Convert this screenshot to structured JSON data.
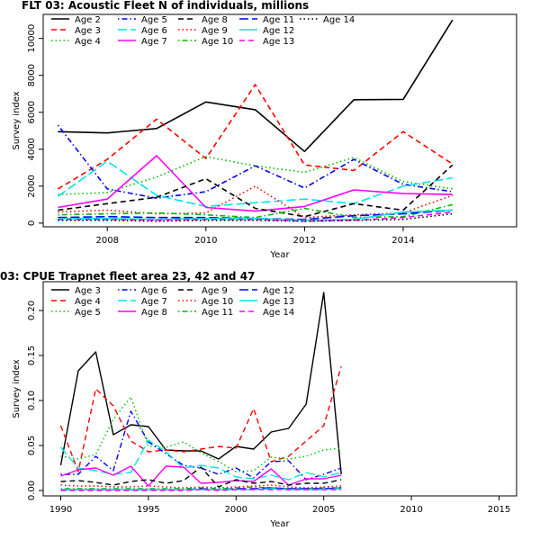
{
  "chart_data": [
    {
      "type": "line",
      "title": "FLT 03: Acoustic Fleet   N of individuals, millions",
      "xlabel": "Year",
      "ylabel": "Survey index",
      "xlim": [
        2006.7,
        2016.3
      ],
      "ylim": [
        -200,
        11300
      ],
      "xticks": [
        2008,
        2010,
        2012,
        2014
      ],
      "yticks": [
        0,
        2000,
        4000,
        6000,
        8000,
        10000
      ],
      "grid": false,
      "legend_position": "top",
      "x": [
        2007,
        2008,
        2009,
        2010,
        2011,
        2012,
        2013,
        2014,
        2015
      ],
      "series": [
        {
          "name": "Age 2",
          "color": "#000000",
          "dash": "solid",
          "values": [
            4950,
            4880,
            5120,
            6560,
            6140,
            3880,
            6680,
            6700,
            11000
          ]
        },
        {
          "name": "Age 3",
          "color": "#ff0000",
          "dash": "dashed",
          "values": [
            1850,
            3450,
            5630,
            3500,
            7500,
            3150,
            2850,
            4950,
            3200
          ]
        },
        {
          "name": "Age 4",
          "color": "#00bb00",
          "dash": "dotted",
          "values": [
            1550,
            1650,
            2500,
            3600,
            3100,
            2750,
            3550,
            2250,
            1850
          ]
        },
        {
          "name": "Age 5",
          "color": "#0000ff",
          "dash": "dotdash",
          "values": [
            5300,
            1850,
            1350,
            1700,
            3100,
            1900,
            3450,
            2100,
            1700
          ]
        },
        {
          "name": "Age 6",
          "color": "#00e5e5",
          "dash": "longdash",
          "values": [
            1450,
            3350,
            1500,
            900,
            1100,
            1300,
            1050,
            2000,
            2450
          ]
        },
        {
          "name": "Age 7",
          "color": "#ff00ff",
          "dash": "solid",
          "values": [
            850,
            1300,
            3650,
            850,
            650,
            900,
            1800,
            1600,
            1550
          ]
        },
        {
          "name": "Age 8",
          "color": "#000000",
          "dash": "dashed",
          "values": [
            700,
            1050,
            1400,
            2400,
            800,
            350,
            1050,
            700,
            3150
          ]
        },
        {
          "name": "Age 9",
          "color": "#ff0000",
          "dash": "dotted",
          "values": [
            600,
            700,
            500,
            550,
            2000,
            300,
            450,
            550,
            1500
          ]
        },
        {
          "name": "Age 10",
          "color": "#00bb00",
          "dash": "dotdash",
          "values": [
            450,
            500,
            550,
            450,
            300,
            800,
            300,
            350,
            1000
          ]
        },
        {
          "name": "Age 11",
          "color": "#0000ff",
          "dash": "longdash",
          "values": [
            300,
            350,
            300,
            300,
            250,
            200,
            400,
            500,
            700
          ]
        },
        {
          "name": "Age 12",
          "color": "#00e5e5",
          "dash": "solid",
          "values": [
            250,
            250,
            200,
            250,
            250,
            150,
            200,
            600,
            700
          ]
        },
        {
          "name": "Age 13",
          "color": "#ff00ff",
          "dash": "dashed",
          "values": [
            200,
            200,
            150,
            200,
            200,
            100,
            150,
            300,
            600
          ]
        },
        {
          "name": "Age 14",
          "color": "#000000",
          "dash": "dotted",
          "values": [
            150,
            150,
            100,
            150,
            150,
            100,
            150,
            200,
            500
          ]
        }
      ]
    },
    {
      "type": "line",
      "title": "03: CPUE Trapnet fleet area 23, 42 and 47",
      "xlabel": "Year",
      "ylabel": "Survey index",
      "xlim": [
        1989,
        2016
      ],
      "ylim": [
        -0.006,
        0.232
      ],
      "xticks": [
        1990,
        1995,
        2000,
        2005,
        2010,
        2015
      ],
      "yticks": [
        0.0,
        0.05,
        0.1,
        0.15,
        0.2
      ],
      "ytick_labels": [
        "0.00",
        "0.05",
        "0.10",
        "0.15",
        "0.20"
      ],
      "grid": false,
      "legend_position": "top",
      "x": [
        1990,
        1991,
        1992,
        1993,
        1994,
        1995,
        1996,
        1997,
        1998,
        1999,
        2000,
        2001,
        2002,
        2003,
        2004,
        2005,
        2006
      ],
      "series": [
        {
          "name": "Age 3",
          "color": "#000000",
          "dash": "solid",
          "values": [
            0.028,
            0.133,
            0.154,
            0.062,
            0.073,
            0.071,
            0.045,
            0.044,
            0.044,
            0.035,
            0.049,
            0.046,
            0.065,
            0.069,
            0.096,
            0.22,
            0.018
          ]
        },
        {
          "name": "Age 4",
          "color": "#ff0000",
          "dash": "dashed",
          "values": [
            0.072,
            0.021,
            0.113,
            0.094,
            0.055,
            0.043,
            0.045,
            0.043,
            0.046,
            0.049,
            0.047,
            0.091,
            0.032,
            0.038,
            0.055,
            0.072,
            0.138
          ]
        },
        {
          "name": "Age 5",
          "color": "#00bb00",
          "dash": "dotted",
          "values": [
            0.038,
            0.035,
            0.04,
            0.079,
            0.104,
            0.049,
            0.048,
            0.054,
            0.042,
            0.032,
            0.021,
            0.022,
            0.037,
            0.035,
            0.038,
            0.045,
            0.047
          ]
        },
        {
          "name": "Age 6",
          "color": "#0000ff",
          "dash": "dotdash",
          "values": [
            0.018,
            0.018,
            0.038,
            0.022,
            0.088,
            0.054,
            0.041,
            0.028,
            0.025,
            0.018,
            0.025,
            0.014,
            0.032,
            0.033,
            0.012,
            0.018,
            0.025
          ]
        },
        {
          "name": "Age 7",
          "color": "#00e5e5",
          "dash": "longdash",
          "values": [
            0.048,
            0.025,
            0.022,
            0.018,
            0.02,
            0.056,
            0.043,
            0.025,
            0.028,
            0.025,
            0.015,
            0.013,
            0.017,
            0.012,
            0.02,
            0.015,
            0.02
          ]
        },
        {
          "name": "Age 8",
          "color": "#ff00ff",
          "dash": "solid",
          "values": [
            0.016,
            0.023,
            0.025,
            0.017,
            0.027,
            0.005,
            0.027,
            0.026,
            0.008,
            0.009,
            0.011,
            0.01,
            0.024,
            0.006,
            0.013,
            0.013,
            0.017
          ]
        },
        {
          "name": "Age 9",
          "color": "#000000",
          "dash": "dashed",
          "values": [
            0.01,
            0.011,
            0.009,
            0.006,
            0.01,
            0.012,
            0.008,
            0.011,
            0.026,
            0.004,
            0.012,
            0.008,
            0.01,
            0.006,
            0.008,
            0.008,
            0.012
          ]
        },
        {
          "name": "Age 10",
          "color": "#ff0000",
          "dash": "dotted",
          "values": [
            0.006,
            0.005,
            0.005,
            0.004,
            0.004,
            0.005,
            0.004,
            0.003,
            0.004,
            0.003,
            0.004,
            0.005,
            0.006,
            0.004,
            0.003,
            0.004,
            0.005
          ]
        },
        {
          "name": "Age 11",
          "color": "#00bb00",
          "dash": "dotdash",
          "values": [
            0.002,
            0.002,
            0.002,
            0.002,
            0.002,
            0.002,
            0.002,
            0.002,
            0.003,
            0.002,
            0.003,
            0.004,
            0.003,
            0.002,
            0.002,
            0.003,
            0.003
          ]
        },
        {
          "name": "Age 12",
          "color": "#0000ff",
          "dash": "longdash",
          "values": [
            0.001,
            0.001,
            0.001,
            0.001,
            0.001,
            0.001,
            0.001,
            0.001,
            0.002,
            0.001,
            0.002,
            0.002,
            0.003,
            0.002,
            0.002,
            0.002,
            0.003
          ]
        },
        {
          "name": "Age 13",
          "color": "#00e5e5",
          "dash": "solid",
          "values": [
            0.001,
            0.001,
            0.001,
            0.001,
            0.001,
            0.001,
            0.001,
            0.001,
            0.001,
            0.001,
            0.001,
            0.001,
            0.002,
            0.001,
            0.001,
            0.001,
            0.002
          ]
        },
        {
          "name": "Age 14",
          "color": "#ff00ff",
          "dash": "dashed",
          "values": [
            0.0,
            0.0,
            0.0,
            0.0,
            0.0,
            0.0,
            0.0,
            0.0,
            0.001,
            0.0,
            0.001,
            0.001,
            0.001,
            0.001,
            0.001,
            0.001,
            0.001
          ]
        }
      ]
    }
  ]
}
